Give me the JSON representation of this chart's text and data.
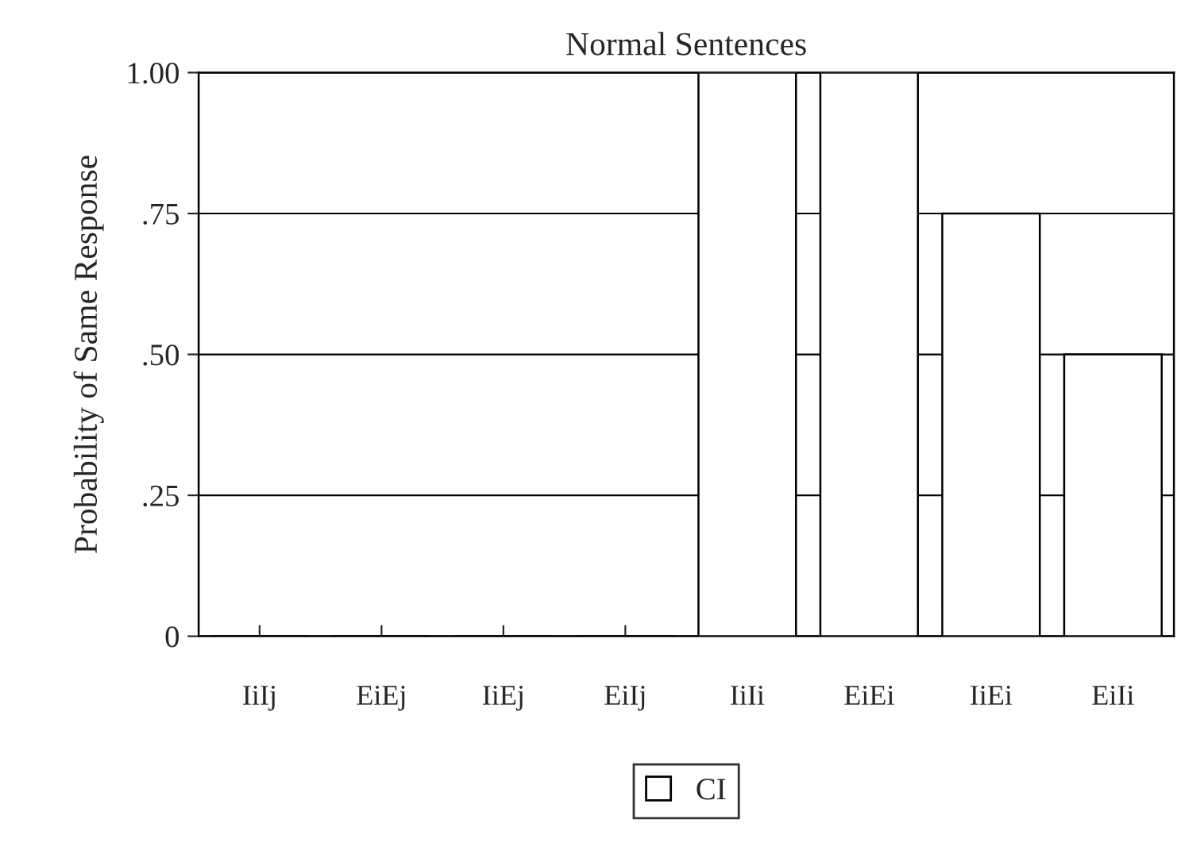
{
  "chart_data": {
    "type": "bar",
    "title": "Normal Sentences",
    "ylabel": "Probability of Same Response",
    "categories": [
      "IiIj",
      "EiEj",
      "IiEj",
      "EiIj",
      "IiIi",
      "EiEi",
      "IiEi",
      "EiIi"
    ],
    "series": [
      {
        "name": "CI",
        "color": "#ffffff",
        "values": [
          0,
          0,
          0,
          0,
          1.0,
          1.0,
          0.75,
          0.5
        ]
      }
    ],
    "ylim": [
      0,
      1.0
    ],
    "yticks": [
      {
        "value": 0,
        "label": "0"
      },
      {
        "value": 0.25,
        "label": ".25"
      },
      {
        "value": 0.5,
        "label": ".50"
      },
      {
        "value": 0.75,
        "label": ".75"
      },
      {
        "value": 1.0,
        "label": "1.00"
      }
    ],
    "grid": "y",
    "legend": "bottom"
  }
}
